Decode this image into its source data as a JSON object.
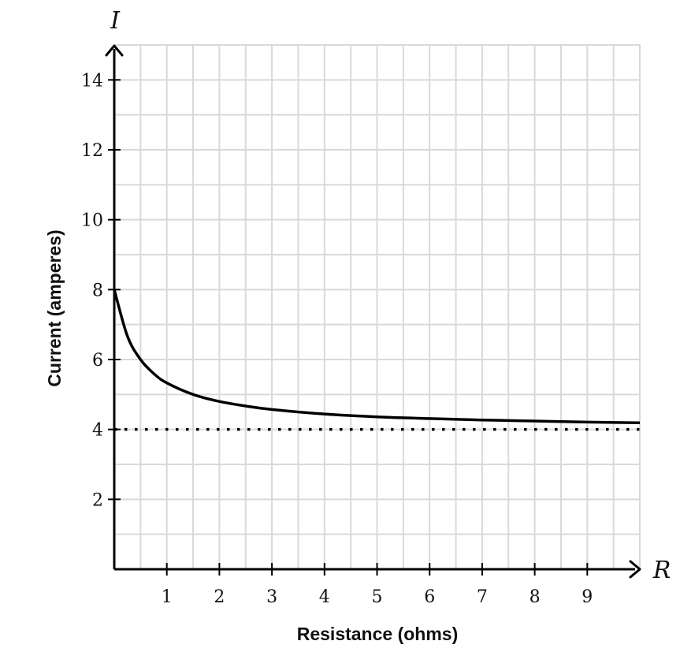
{
  "chart_data": {
    "type": "line",
    "x_var": "R",
    "y_var": "I",
    "xlabel": "Resistance (ohms)",
    "ylabel": "Current (amperes)",
    "xlim": [
      0,
      10
    ],
    "ylim": [
      0,
      15
    ],
    "x_ticks": [
      1,
      2,
      3,
      4,
      5,
      6,
      7,
      8,
      9
    ],
    "y_ticks": [
      2,
      4,
      6,
      8,
      10,
      12,
      14
    ],
    "x_tick_labels": [
      "1",
      "2",
      "3",
      "4",
      "5",
      "6",
      "7",
      "8",
      "9"
    ],
    "y_tick_labels": [
      "2",
      "4",
      "6",
      "8",
      "10",
      "12",
      "14"
    ],
    "grid": true,
    "grid_minor_step": {
      "x": 0.5,
      "y": 1
    },
    "series": [
      {
        "style": "solid",
        "color": "#000000",
        "x": [
          0,
          0.25,
          0.5,
          0.75,
          1,
          1.5,
          2,
          2.5,
          3,
          4,
          5,
          6,
          7,
          8,
          9,
          10
        ],
        "y": [
          8,
          6.67,
          6.0,
          5.6,
          5.33,
          5.0,
          4.8,
          4.67,
          4.57,
          4.44,
          4.36,
          4.31,
          4.27,
          4.24,
          4.21,
          4.19
        ]
      },
      {
        "style": "dotted",
        "color": "#000000",
        "x": [
          0,
          10
        ],
        "y": [
          4,
          4
        ]
      }
    ],
    "colors": {
      "grid": "#d9d9d9",
      "axis": "#000000"
    }
  }
}
